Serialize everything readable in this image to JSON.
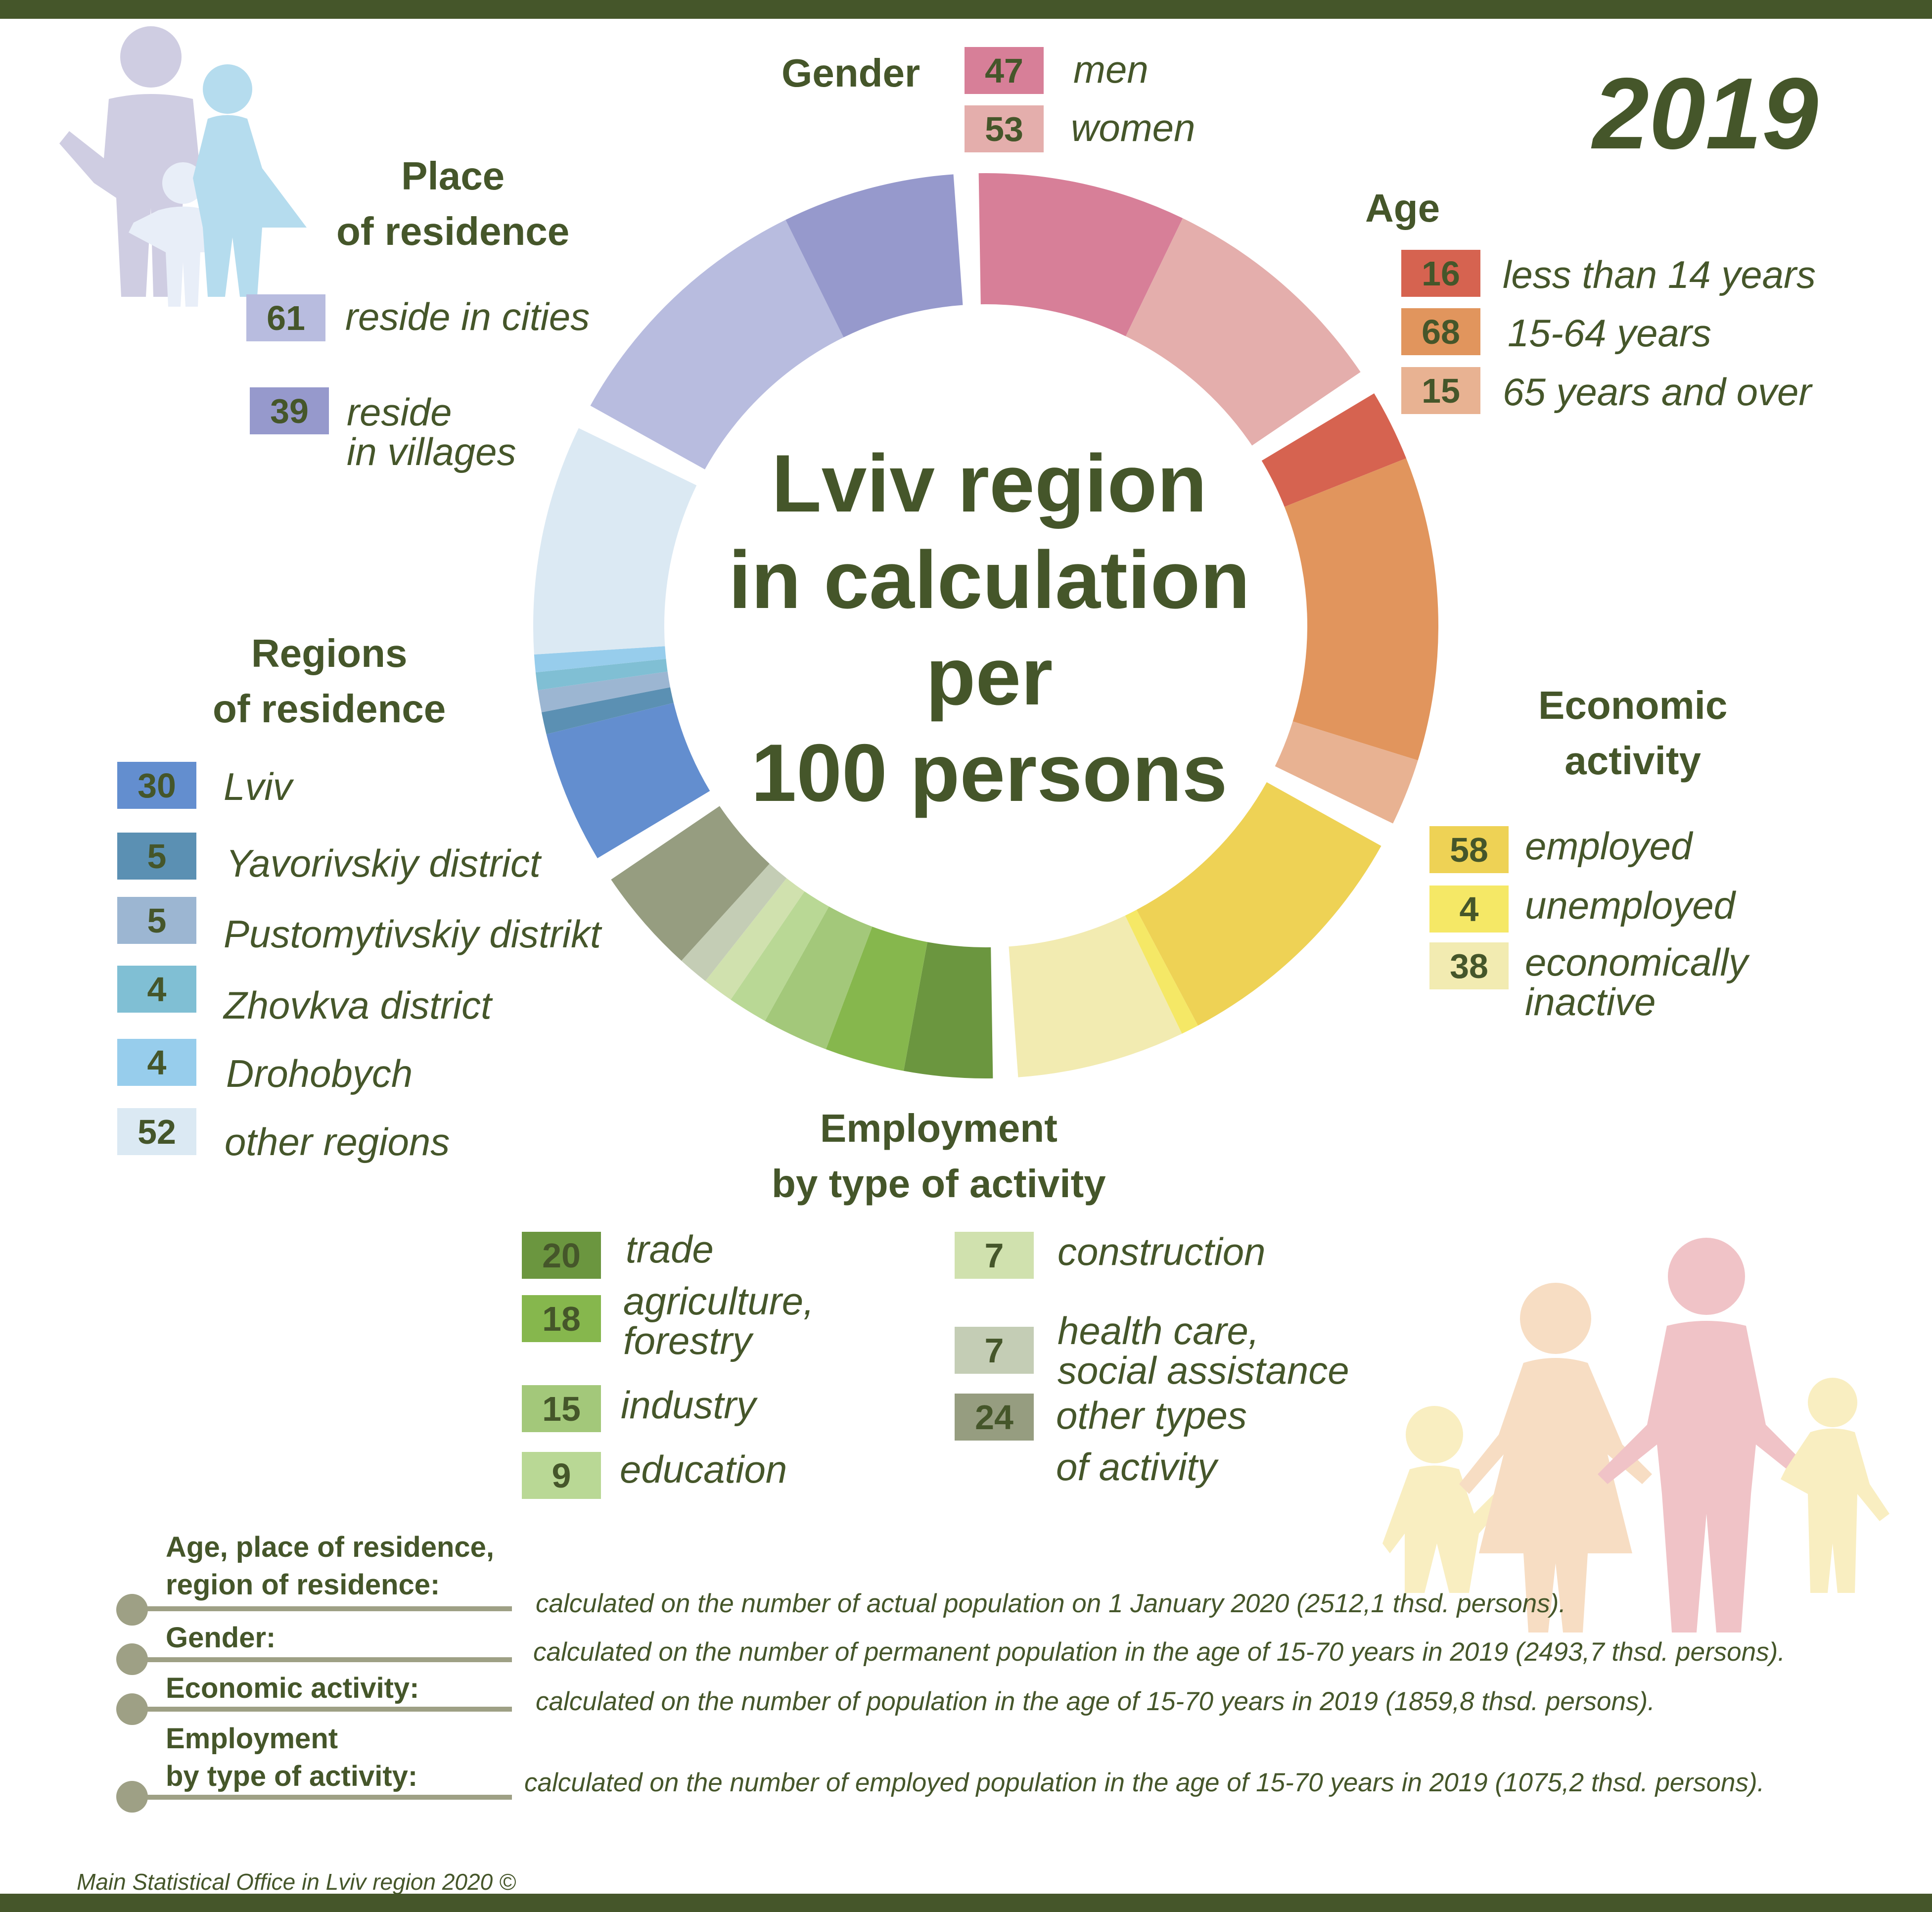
{
  "title": "Lviv region in calculation per 100 persons",
  "title_lines": [
    "Lviv region",
    "in calculation",
    "per",
    "100 persons"
  ],
  "year": "2019",
  "colors": {
    "text": "#45562a",
    "bar": "#45562a",
    "note_line": "#9ea085"
  },
  "chart_data": {
    "type": "pie",
    "donut": true,
    "groups": [
      {
        "title": "Gender",
        "items": [
          {
            "value": 47,
            "label": "men",
            "color": "#d77f98"
          },
          {
            "value": 53,
            "label": "women",
            "color": "#e4aeac"
          }
        ]
      },
      {
        "title": "Age",
        "items": [
          {
            "value": 16,
            "label": "less than 14 years",
            "color": "#d66350"
          },
          {
            "value": 68,
            "label": "15-64 years",
            "color": "#e1955d"
          },
          {
            "value": 15,
            "label": "65 years and over",
            "color": "#e8b292"
          }
        ]
      },
      {
        "title": "Economic activity",
        "title_lines": [
          "Economic",
          "activity"
        ],
        "items": [
          {
            "value": 58,
            "label": "employed",
            "color": "#eed255"
          },
          {
            "value": 4,
            "label": "unemployed",
            "color": "#f5e866"
          },
          {
            "value": 38,
            "label": "economically inactive",
            "label_lines": [
              "economically",
              "inactive"
            ],
            "color": "#f2ebb1"
          }
        ]
      },
      {
        "title": "Employment by type of activity",
        "title_lines": [
          "Employment",
          "by type of activity"
        ],
        "items": [
          {
            "value": 20,
            "label": "trade",
            "color": "#6b963f"
          },
          {
            "value": 18,
            "label": "agriculture, forestry",
            "label_lines": [
              "agriculture,",
              "forestry"
            ],
            "color": "#86b74d"
          },
          {
            "value": 15,
            "label": "industry",
            "color": "#a3c87a"
          },
          {
            "value": 9,
            "label": "education",
            "color": "#b9d895"
          },
          {
            "value": 7,
            "label": "construction",
            "color": "#d0e1ae"
          },
          {
            "value": 7,
            "label": "health care, social assistance",
            "label_lines": [
              "health care,",
              "social assistance"
            ],
            "color": "#c4cdb5"
          },
          {
            "value": 24,
            "label": "other types of activity",
            "label_lines": [
              "other types",
              "of activity"
            ],
            "color": "#969d80"
          }
        ]
      },
      {
        "title": "Regions of residence",
        "title_lines": [
          "Regions",
          "of residence"
        ],
        "items": [
          {
            "value": 30,
            "label": "Lviv",
            "color": "#638ecf"
          },
          {
            "value": 5,
            "label": "Yavorivskiy district",
            "color": "#5b90b3"
          },
          {
            "value": 5,
            "label": "Pustomytivskiy distrikt",
            "color": "#9cb6d2"
          },
          {
            "value": 4,
            "label": "Zhovkva district",
            "color": "#80bfd4"
          },
          {
            "value": 4,
            "label": "Drohobych",
            "color": "#97cdec"
          },
          {
            "value": 52,
            "label": "other regions",
            "color": "#dbe9f3"
          }
        ]
      },
      {
        "title": "Place of residence",
        "title_lines": [
          "Place",
          "of residence"
        ],
        "items": [
          {
            "value": 61,
            "label": "reside in cities",
            "color": "#b8bcdf"
          },
          {
            "value": 39,
            "label": "reside in villages",
            "label_lines": [
              "reside",
              "in villages"
            ],
            "color": "#9699cc"
          }
        ]
      }
    ]
  },
  "notes": [
    {
      "label_lines": [
        "Age, place of residence,",
        "region of residence:"
      ],
      "text": "calculated on the number of actual population on 1 January  2020  (2512,1 thsd. persons)."
    },
    {
      "label_lines": [
        "Gender:"
      ],
      "text": "calculated on the number of permanent population in the age of 15-70 years  in 2019  (2493,7 thsd. persons)."
    },
    {
      "label_lines": [
        "Economic activity:"
      ],
      "text": "calculated on the number of population in the age of 15-70 years  in 2019  (1859,8 thsd. persons)."
    },
    {
      "label_lines": [
        "Employment",
        "by type of activity:"
      ],
      "text": "calculated on the number of employed population in the age of 15-70 years   in 2019  (1075,2 thsd. persons)."
    }
  ],
  "source": "Main Statistical Office in Lviv region  2020 ©"
}
